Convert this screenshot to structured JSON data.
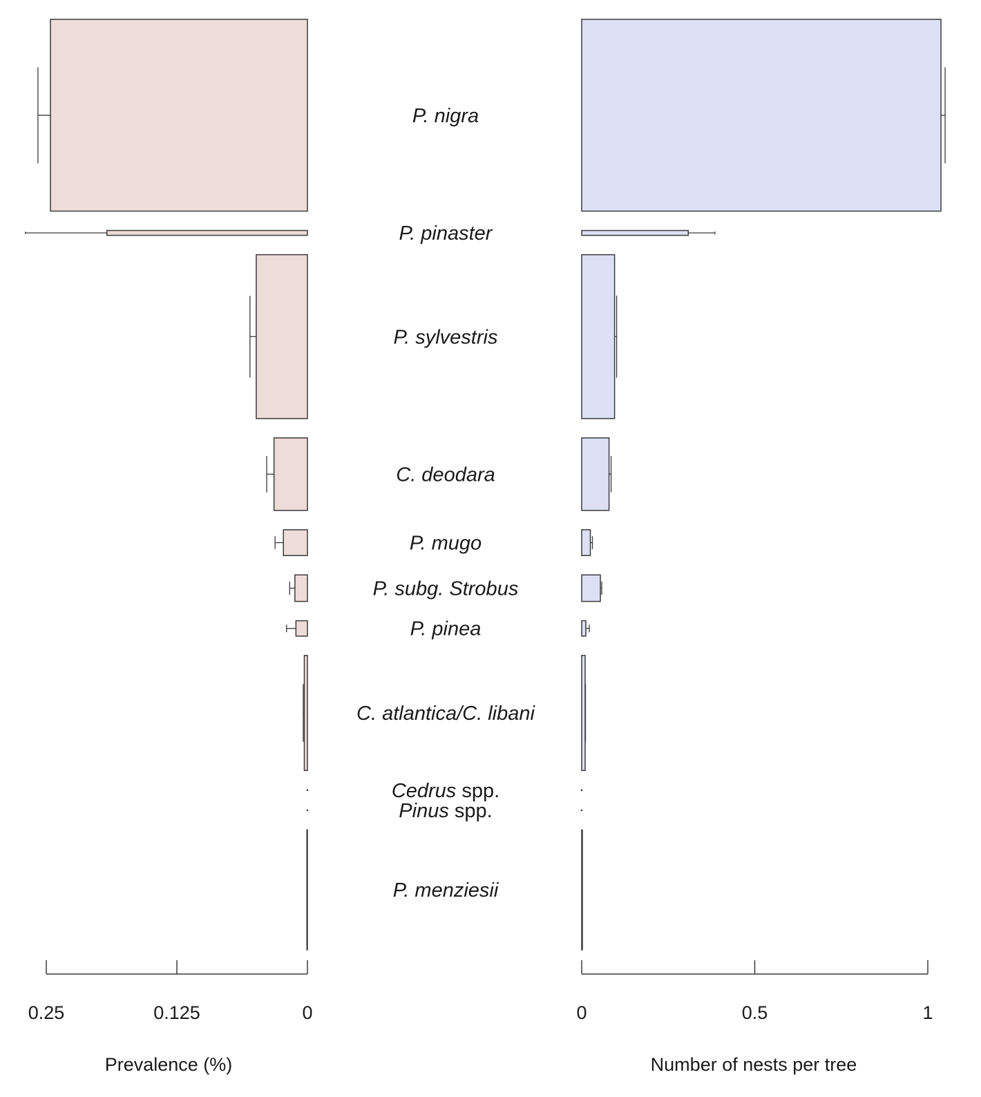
{
  "chart_data": {
    "type": "bar",
    "layout": "back-to-back horizontal bars with error bars",
    "categories": [
      {
        "name": "P. nigra",
        "italic": "P. nigra",
        "plain": ""
      },
      {
        "name": "P. pinaster",
        "italic": "P. pinaster",
        "plain": ""
      },
      {
        "name": "P. sylvestris",
        "italic": "P. sylvestris",
        "plain": ""
      },
      {
        "name": "C. deodara",
        "italic": "C. deodara",
        "plain": ""
      },
      {
        "name": "P. mugo",
        "italic": "P. mugo",
        "plain": ""
      },
      {
        "name": "P. subg. Strobus",
        "italic": "P. subg. Strobus",
        "plain": ""
      },
      {
        "name": "P. pinea",
        "italic": "P. pinea",
        "plain": ""
      },
      {
        "name": "C. atlantica/C. libani",
        "italic": "C. atlantica/C. libani",
        "plain": ""
      },
      {
        "name": "Cedrus spp.",
        "italic": "Cedrus",
        "plain": " spp."
      },
      {
        "name": "Pinus spp.",
        "italic": "Pinus",
        "plain": " spp."
      },
      {
        "name": "P. menziesii",
        "italic": "P. menziesii",
        "plain": ""
      }
    ],
    "bar_height_weights": [
      275,
      7,
      235,
      104,
      37,
      38,
      22,
      165,
      1,
      1,
      172
    ],
    "left_panel": {
      "xlabel": "Prevalence (%)",
      "xlim": [
        0.25,
        0
      ],
      "ticks": [
        0.25,
        0.125,
        0
      ],
      "tick_labels": [
        "0.25",
        "0.125",
        "0"
      ],
      "series": [
        {
          "values": [
            0.246,
            0.192,
            0.049,
            0.032,
            0.023,
            0.012,
            0.011,
            0.003,
            0,
            0,
            0.0005
          ],
          "error": [
            0.012,
            0.078,
            0.006,
            0.007,
            0.008,
            0.005,
            0.009,
            0.001,
            0,
            0,
            0
          ]
        }
      ]
    },
    "right_panel": {
      "xlabel": "Number of nests per tree",
      "xlim": [
        0,
        1
      ],
      "ticks": [
        0,
        0.5,
        1
      ],
      "tick_labels": [
        "0",
        "0.5",
        "1"
      ],
      "series": [
        {
          "values": [
            1.038,
            0.308,
            0.095,
            0.079,
            0.025,
            0.054,
            0.012,
            0.01,
            0,
            0,
            0.002
          ],
          "error": [
            0.012,
            0.077,
            0.006,
            0.006,
            0.006,
            0.004,
            0.01,
            0.001,
            0,
            0,
            0
          ]
        }
      ]
    },
    "grid": false,
    "legend": "none"
  }
}
